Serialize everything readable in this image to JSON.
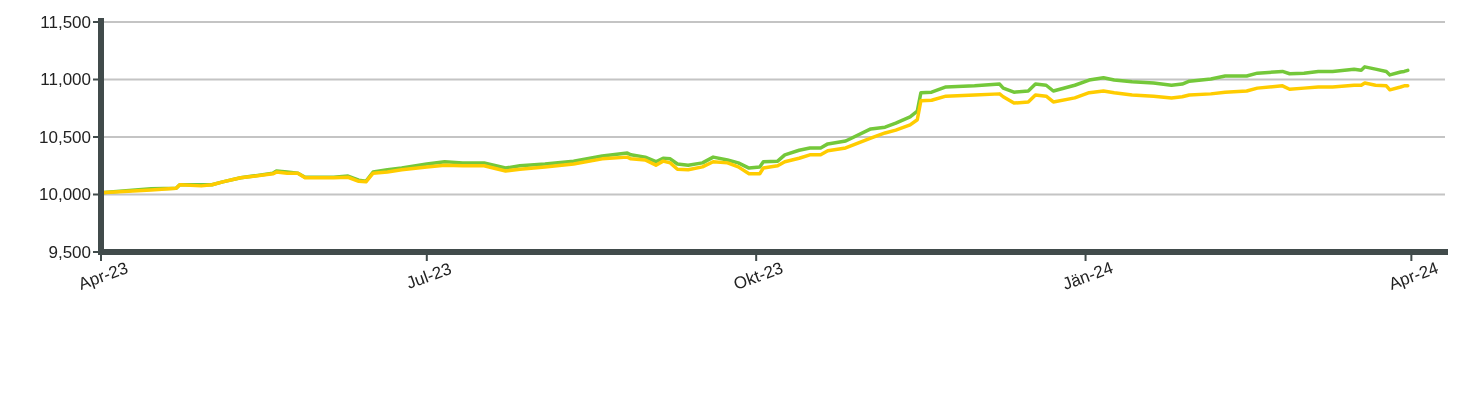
{
  "chart_data": {
    "type": "line",
    "x": [
      "2023-04-01",
      "2023-04-15",
      "2023-04-22",
      "2023-04-23",
      "2023-04-29",
      "2023-05-02",
      "2023-05-05",
      "2023-05-10",
      "2023-05-19",
      "2023-05-20",
      "2023-05-23",
      "2023-05-26",
      "2023-05-28",
      "2023-06-05",
      "2023-06-09",
      "2023-06-12",
      "2023-06-14",
      "2023-06-16",
      "2023-06-20",
      "2023-06-24",
      "2023-07-01",
      "2023-07-06",
      "2023-07-11",
      "2023-07-17",
      "2023-07-23",
      "2023-07-27",
      "2023-08-03",
      "2023-08-11",
      "2023-08-19",
      "2023-08-26",
      "2023-08-27",
      "2023-08-31",
      "2023-09-03",
      "2023-09-05",
      "2023-09-07",
      "2023-09-09",
      "2023-09-12",
      "2023-09-16",
      "2023-09-19",
      "2023-09-23",
      "2023-09-26",
      "2023-09-29",
      "2023-10-02",
      "2023-10-03",
      "2023-10-07",
      "2023-10-09",
      "2023-10-13",
      "2023-10-16",
      "2023-10-19",
      "2023-10-21",
      "2023-10-26",
      "2023-11-02",
      "2023-11-06",
      "2023-11-09",
      "2023-11-13",
      "2023-11-15",
      "2023-11-16",
      "2023-11-19",
      "2023-11-23",
      "2023-12-01",
      "2023-12-08",
      "2023-12-09",
      "2023-12-12",
      "2023-12-16",
      "2023-12-18",
      "2023-12-21",
      "2023-12-23",
      "2023-12-29",
      "2024-01-02",
      "2024-01-06",
      "2024-01-09",
      "2024-01-14",
      "2024-01-20",
      "2024-01-25",
      "2024-01-28",
      "2024-01-30",
      "2024-02-05",
      "2024-02-09",
      "2024-02-15",
      "2024-02-18",
      "2024-02-25",
      "2024-02-27",
      "2024-03-02",
      "2024-03-06",
      "2024-03-10",
      "2024-03-16",
      "2024-03-18",
      "2024-03-19",
      "2024-03-22",
      "2024-03-25",
      "2024-03-26",
      "2024-03-29",
      "2024-03-30",
      "2024-03-31"
    ],
    "series": [
      {
        "color": "#74c83a",
        "values": [
          10015,
          10050,
          10055,
          10085,
          10085,
          10085,
          10110,
          10145,
          10185,
          10205,
          10195,
          10185,
          10150,
          10150,
          10160,
          10125,
          10115,
          10195,
          10215,
          10230,
          10265,
          10285,
          10275,
          10275,
          10230,
          10250,
          10265,
          10290,
          10335,
          10360,
          10345,
          10325,
          10285,
          10315,
          10310,
          10265,
          10255,
          10275,
          10325,
          10300,
          10275,
          10230,
          10240,
          10285,
          10290,
          10345,
          10385,
          10405,
          10405,
          10440,
          10465,
          10570,
          10585,
          10620,
          10675,
          10725,
          10885,
          10890,
          10935,
          10945,
          10960,
          10925,
          10890,
          10900,
          10960,
          10950,
          10900,
          10950,
          10995,
          11015,
          10995,
          10980,
          10970,
          10950,
          10960,
          10985,
          11005,
          11030,
          11030,
          11055,
          11070,
          11050,
          11055,
          11070,
          11070,
          11090,
          11080,
          11110,
          11090,
          11070,
          11040,
          11065,
          11070,
          11080
        ]
      },
      {
        "color": "#ffcc00",
        "values": [
          10015,
          10040,
          10055,
          10085,
          10075,
          10085,
          10110,
          10145,
          10180,
          10195,
          10185,
          10185,
          10145,
          10145,
          10150,
          10115,
          10110,
          10185,
          10195,
          10215,
          10240,
          10255,
          10250,
          10250,
          10205,
          10220,
          10240,
          10265,
          10310,
          10325,
          10310,
          10300,
          10255,
          10290,
          10275,
          10220,
          10215,
          10240,
          10285,
          10275,
          10240,
          10180,
          10180,
          10230,
          10250,
          10285,
          10315,
          10345,
          10345,
          10380,
          10405,
          10490,
          10535,
          10560,
          10605,
          10650,
          10815,
          10820,
          10855,
          10865,
          10875,
          10850,
          10795,
          10805,
          10865,
          10855,
          10805,
          10840,
          10885,
          10900,
          10885,
          10865,
          10855,
          10840,
          10850,
          10865,
          10875,
          10890,
          10900,
          10925,
          10945,
          10915,
          10925,
          10935,
          10935,
          10950,
          10950,
          10970,
          10950,
          10945,
          10910,
          10935,
          10945,
          10945
        ]
      }
    ],
    "xlim": [
      "2023-04-01",
      "2024-04-09"
    ],
    "xticks": [
      {
        "value": "2023-04-01",
        "label": "Apr-23"
      },
      {
        "value": "2023-07-01",
        "label": "Jul-23"
      },
      {
        "value": "2023-10-01",
        "label": "Okt-23"
      },
      {
        "value": "2024-01-01",
        "label": "Jän-24"
      },
      {
        "value": "2024-04-01",
        "label": "Apr-24"
      }
    ],
    "ylim": [
      9500,
      11500
    ],
    "yticks": [
      {
        "value": 9500,
        "label": "9,500"
      },
      {
        "value": 10000,
        "label": "10,000"
      },
      {
        "value": 10500,
        "label": "10,500"
      },
      {
        "value": 11000,
        "label": "11,000"
      },
      {
        "value": 11500,
        "label": "11,500"
      }
    ],
    "grid": "y",
    "marker": "none",
    "line_style": "solid"
  }
}
